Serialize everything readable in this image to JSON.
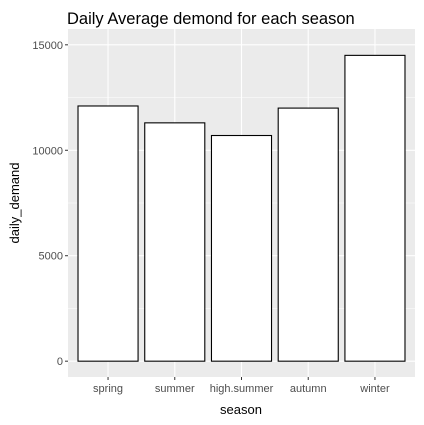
{
  "chart_data": {
    "type": "bar",
    "title": "Daily Average demond for each season",
    "xlabel": "season",
    "ylabel": "daily_demand",
    "categories": [
      "spring",
      "summer",
      "high.summer",
      "autumn",
      "winter"
    ],
    "values": [
      12100,
      11300,
      10700,
      12000,
      14500
    ],
    "ylim": [
      0,
      15000
    ],
    "yticks": [
      0,
      5000,
      10000,
      15000
    ],
    "ytick_labels": [
      "0",
      "5000",
      "10000",
      "15000"
    ],
    "grid": true,
    "legend": "none",
    "colors": {
      "panel_background": "#ebebeb",
      "grid": "#ffffff",
      "bar_fill": "#ffffff",
      "bar_outline": "#000000"
    }
  }
}
